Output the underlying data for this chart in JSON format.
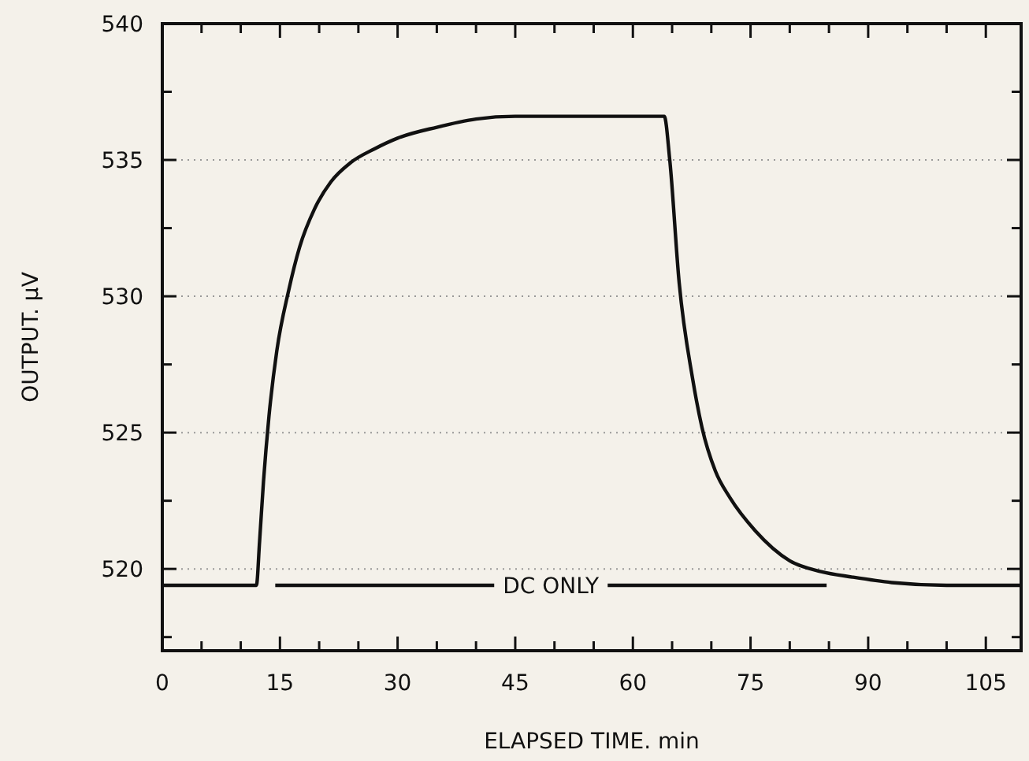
{
  "chart_data": {
    "type": "line",
    "xlabel": "ELAPSED TIME. min",
    "ylabel": "OUTPUT. µV",
    "xlim": [
      0,
      109.5
    ],
    "ylim": [
      517,
      540
    ],
    "xticks": [
      0,
      {
        "value": 5,
        "label": null
      },
      {
        "value": 10,
        "label": null
      },
      15,
      {
        "value": 20,
        "label": null
      },
      {
        "value": 25,
        "label": null
      },
      30,
      {
        "value": 35,
        "label": null
      },
      {
        "value": 40,
        "label": null
      },
      45,
      {
        "value": 50,
        "label": null
      },
      {
        "value": 55,
        "label": null
      },
      60,
      {
        "value": 65,
        "label": null
      },
      {
        "value": 70,
        "label": null
      },
      75,
      {
        "value": 80,
        "label": null
      },
      {
        "value": 85,
        "label": null
      },
      90,
      {
        "value": 95,
        "label": null
      },
      {
        "value": 100,
        "label": null
      },
      105
    ],
    "yticks": [
      {
        "value": 517.5,
        "label": null
      },
      520,
      {
        "value": 522.5,
        "label": null
      },
      525,
      {
        "value": 527.5,
        "label": null
      },
      530,
      {
        "value": 532.5,
        "label": null
      },
      535,
      {
        "value": 537.5,
        "label": null
      },
      540
    ],
    "grid": "y",
    "marker": "none",
    "line_style": "solid",
    "series": [
      {
        "color": "#111111",
        "x": [
          0,
          12,
          12.4,
          12.9,
          13.6,
          14.6,
          16.1,
          17.5,
          19.4,
          21.5,
          24,
          27,
          30,
          35,
          40,
          45,
          55,
          64,
          64.7,
          65.9,
          67.6,
          68.8,
          70.5,
          72.4,
          75.6,
          80,
          84,
          88,
          93,
          100,
          109.5
        ],
        "values": [
          519.4,
          519.4,
          521,
          523.2,
          525.6,
          528,
          530.2,
          531.8,
          533.2,
          534.2,
          534.9,
          535.4,
          535.8,
          536.2,
          536.5,
          536.6,
          536.6,
          536.6,
          535,
          530.5,
          527,
          525.2,
          523.6,
          522.6,
          521.4,
          520.3,
          519.9,
          519.7,
          519.5,
          519.4,
          519.4
        ]
      },
      {
        "name": "DC ONLY",
        "color": "#111111",
        "x": [
          14.4,
          84.7
        ],
        "values": [
          519.4,
          519.4
        ]
      }
    ]
  }
}
